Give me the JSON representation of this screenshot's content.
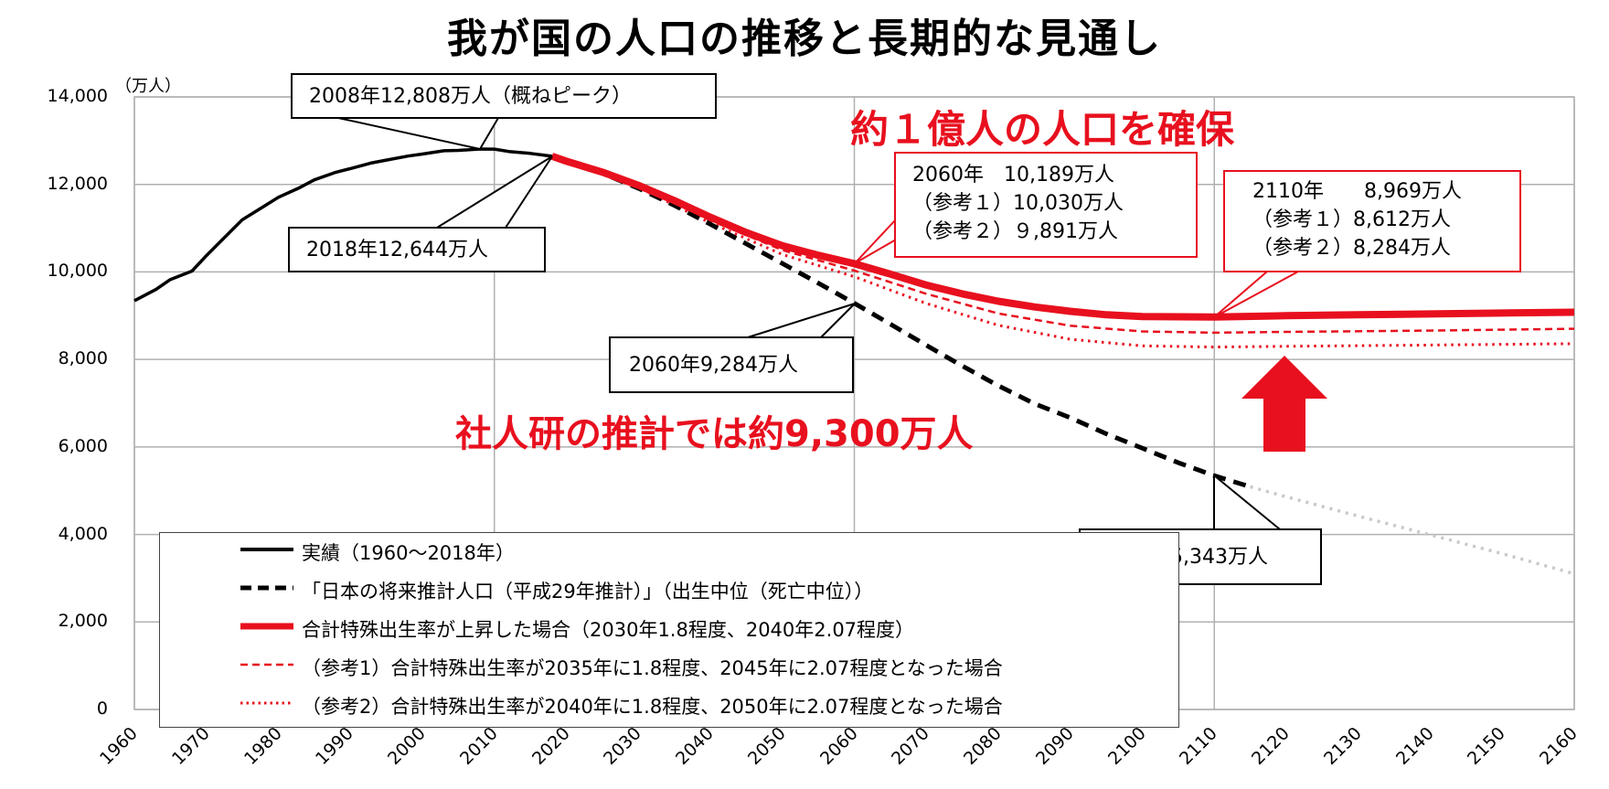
{
  "title": "我が国の人口の推移と長期的な見通し",
  "y_unit": "（万人）",
  "chart_data": {
    "type": "line",
    "ylim": [
      0,
      14000
    ],
    "xlim": [
      1960,
      2160
    ],
    "yticks": [
      "14,000",
      "12,000",
      "10,000",
      "8,000",
      "6,000",
      "4,000",
      "2,000",
      "0"
    ],
    "xticks": [
      "1960",
      "1970",
      "1980",
      "1990",
      "2000",
      "2010",
      "2020",
      "2030",
      "2040",
      "2050",
      "2060",
      "2070",
      "2080",
      "2090",
      "2100",
      "2110",
      "2120",
      "2130",
      "2140",
      "2150",
      "2160"
    ],
    "grid": true,
    "legend_position": "bottom-left",
    "series": [
      {
        "name": "実績（1960～2018年）",
        "color": "#000000",
        "style": "solid",
        "points": [
          [
            1960,
            9342
          ],
          [
            1963,
            9600
          ],
          [
            1965,
            9828
          ],
          [
            1968,
            10020
          ],
          [
            1970,
            10372
          ],
          [
            1972,
            10700
          ],
          [
            1975,
            11194
          ],
          [
            1978,
            11500
          ],
          [
            1980,
            11706
          ],
          [
            1983,
            11930
          ],
          [
            1985,
            12105
          ],
          [
            1988,
            12278
          ],
          [
            1990,
            12361
          ],
          [
            1993,
            12494
          ],
          [
            1995,
            12557
          ],
          [
            1998,
            12649
          ],
          [
            2000,
            12693
          ],
          [
            2003,
            12769
          ],
          [
            2005,
            12777
          ],
          [
            2008,
            12808
          ],
          [
            2010,
            12806
          ],
          [
            2012,
            12752
          ],
          [
            2015,
            12709
          ],
          [
            2018,
            12644
          ]
        ]
      },
      {
        "name": "「日本の将来推計人口（平成29年推計）」（出生中位（死亡中位））",
        "color": "#000000",
        "style": "dashed",
        "points": [
          [
            2018,
            12644
          ],
          [
            2020,
            12532
          ],
          [
            2025,
            12254
          ],
          [
            2030,
            11913
          ],
          [
            2035,
            11522
          ],
          [
            2040,
            11092
          ],
          [
            2045,
            10642
          ],
          [
            2050,
            10192
          ],
          [
            2055,
            9744
          ],
          [
            2060,
            9284
          ],
          [
            2065,
            8808
          ],
          [
            2070,
            8323
          ],
          [
            2075,
            7850
          ],
          [
            2080,
            7400
          ],
          [
            2085,
            6990
          ],
          [
            2090,
            6668
          ],
          [
            2095,
            6300
          ],
          [
            2100,
            5972
          ],
          [
            2105,
            5640
          ],
          [
            2110,
            5343
          ],
          [
            2115,
            5090
          ]
        ]
      },
      {
        "name": "",
        "color": "#c8c8c8",
        "style": "dotted",
        "points": [
          [
            2115,
            5090
          ],
          [
            2120,
            4860
          ],
          [
            2130,
            4420
          ],
          [
            2140,
            3990
          ],
          [
            2150,
            3560
          ],
          [
            2160,
            3100
          ]
        ]
      },
      {
        "name": "合計特殊出生率が上昇した場合（2030年1.8程度、2040年2.07程度）",
        "color": "#e8101e",
        "style": "thick",
        "points": [
          [
            2018,
            12644
          ],
          [
            2020,
            12532
          ],
          [
            2025,
            12280
          ],
          [
            2030,
            11980
          ],
          [
            2035,
            11630
          ],
          [
            2040,
            11250
          ],
          [
            2045,
            10900
          ],
          [
            2050,
            10600
          ],
          [
            2055,
            10380
          ],
          [
            2060,
            10189
          ],
          [
            2065,
            9950
          ],
          [
            2070,
            9700
          ],
          [
            2075,
            9500
          ],
          [
            2080,
            9330
          ],
          [
            2085,
            9200
          ],
          [
            2090,
            9100
          ],
          [
            2095,
            9020
          ],
          [
            2100,
            8980
          ],
          [
            2110,
            8969
          ],
          [
            2120,
            9000
          ],
          [
            2130,
            9020
          ],
          [
            2140,
            9040
          ],
          [
            2150,
            9060
          ],
          [
            2160,
            9080
          ]
        ]
      },
      {
        "name": "（参考1）合計特殊出生率が2035年に1.8程度、2045年に2.07程度となった場合",
        "color": "#e8101e",
        "style": "dashed-thin",
        "points": [
          [
            2018,
            12644
          ],
          [
            2030,
            11950
          ],
          [
            2040,
            11180
          ],
          [
            2050,
            10500
          ],
          [
            2060,
            10030
          ],
          [
            2070,
            9500
          ],
          [
            2080,
            9050
          ],
          [
            2090,
            8770
          ],
          [
            2100,
            8640
          ],
          [
            2110,
            8612
          ],
          [
            2120,
            8630
          ],
          [
            2140,
            8660
          ],
          [
            2160,
            8700
          ]
        ]
      },
      {
        "name": "（参考2）合計特殊出生率が2040年に1.8程度、2050年に2.07程度となった場合",
        "color": "#e8101e",
        "style": "dotted-thin",
        "points": [
          [
            2018,
            12644
          ],
          [
            2030,
            11930
          ],
          [
            2040,
            11120
          ],
          [
            2050,
            10400
          ],
          [
            2060,
            9891
          ],
          [
            2070,
            9280
          ],
          [
            2080,
            8780
          ],
          [
            2090,
            8460
          ],
          [
            2100,
            8310
          ],
          [
            2110,
            8284
          ],
          [
            2120,
            8300
          ],
          [
            2140,
            8330
          ],
          [
            2160,
            8360
          ]
        ]
      }
    ]
  },
  "callouts": {
    "peak": "2008年12,808万人（概ねピーク）",
    "y2018": "2018年12,644万人",
    "y2060_base": "2060年9,284万人",
    "y2110_base": "2110年5,343万人",
    "y2060_high": [
      "2060年　10,189万人",
      "（参考１）10,030万人",
      "（参考２）９,891万人"
    ],
    "y2110_high": [
      "2110年　　8,969万人",
      "（参考１）8,612万人",
      "（参考２）8,284万人"
    ]
  },
  "headline_red": "約１億人の人口を確保",
  "note_red": "社人研の推計では約9,300万人",
  "legend": [
    "実績（1960～2018年）",
    "「日本の将来推計人口（平成29年推計）」（出生中位（死亡中位））",
    "合計特殊出生率が上昇した場合（2030年1.8程度、2040年2.07程度）",
    "（参考1）合計特殊出生率が2035年に1.8程度、2045年に2.07程度となった場合",
    "（参考2）合計特殊出生率が2040年に1.8程度、2050年に2.07程度となった場合"
  ],
  "colors": {
    "accent_red": "#e8101e",
    "grid": "#b0b0b0",
    "projection_gray": "#c8c8c8"
  }
}
